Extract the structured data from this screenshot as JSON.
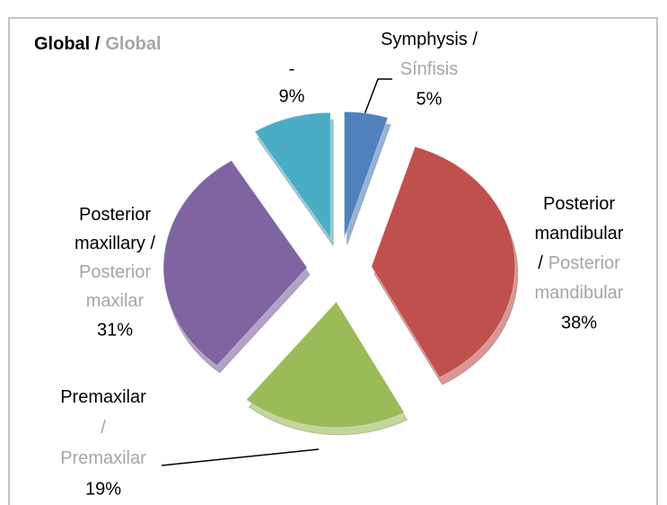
{
  "chart_data": {
    "type": "pie",
    "title": [
      {
        "text": "Global /",
        "color": "#000000"
      },
      {
        "text": "Global",
        "color": "#a6a6a6"
      }
    ],
    "categories": [
      [
        [
          {
            "text": "Symphysis /",
            "color": "#000000"
          }
        ],
        [
          {
            "text": "Sínfisis",
            "color": "#a6a6a6"
          }
        ]
      ],
      [
        [
          {
            "text": "Posterior",
            "color": "#000000"
          }
        ],
        [
          {
            "text": "mandibular",
            "color": "#000000"
          }
        ],
        [
          {
            "text": "/",
            "color": "#000000"
          },
          {
            "text": "Posterior",
            "color": "#a6a6a6"
          }
        ],
        [
          {
            "text": "mandibular",
            "color": "#a6a6a6"
          }
        ]
      ],
      [
        [
          {
            "text": "Premaxilar",
            "color": "#000000"
          }
        ],
        [
          {
            "text": "/",
            "color": "#a6a6a6"
          }
        ],
        [
          {
            "text": "Premaxilar",
            "color": "#a6a6a6"
          }
        ]
      ],
      [
        [
          {
            "text": "Posterior",
            "color": "#000000"
          }
        ],
        [
          {
            "text": "maxillary /",
            "color": "#000000"
          }
        ],
        [
          {
            "text": "Posterior",
            "color": "#a6a6a6"
          }
        ],
        [
          {
            "text": "maxilar",
            "color": "#a6a6a6"
          }
        ]
      ],
      [
        [
          {
            "text": "-",
            "color": "#000000"
          }
        ]
      ]
    ],
    "values": [
      5,
      38,
      19,
      31,
      9
    ],
    "value_labels": [
      "5%",
      "38%",
      "19%",
      "31%",
      "9%"
    ],
    "colors": [
      "#4f81bd",
      "#c0504d",
      "#9bbb59",
      "#8064a2",
      "#4bacc6"
    ]
  }
}
